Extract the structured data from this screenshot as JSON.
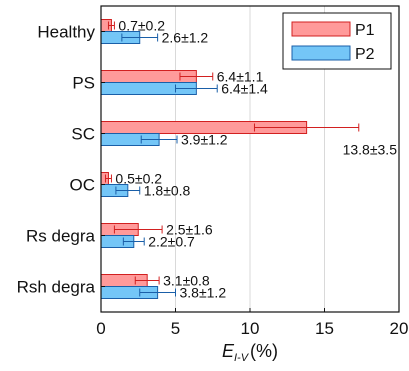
{
  "chart_data": {
    "type": "bar",
    "orientation": "horizontal",
    "categories": [
      "Healthy",
      "PS",
      "SC",
      "OC",
      "Rs degra",
      "Rsh degra"
    ],
    "series": [
      {
        "name": "P1",
        "color": "#ff9a9a",
        "values": [
          0.7,
          6.4,
          13.8,
          0.5,
          2.5,
          3.1
        ],
        "errors": [
          0.2,
          1.1,
          3.5,
          0.2,
          1.6,
          0.8
        ],
        "labels": [
          "0.7±0.2",
          "6.4±1.1",
          "13.8±3.5",
          "0.5±0.2",
          "2.5±1.6",
          "3.1±0.8"
        ]
      },
      {
        "name": "P2",
        "color": "#74c6f7",
        "values": [
          2.6,
          6.4,
          3.9,
          1.8,
          2.2,
          3.8
        ],
        "errors": [
          1.2,
          1.4,
          1.2,
          0.8,
          0.7,
          1.2
        ],
        "labels": [
          "2.6±1.2",
          "6.4±1.4",
          "3.9±1.2",
          "1.8±0.8",
          "2.2±0.7",
          "3.8±1.2"
        ]
      }
    ],
    "x_ticks": [
      "0",
      "5",
      "10",
      "15",
      "20"
    ],
    "xlim": [
      0,
      20
    ],
    "xlabel_main": "E",
    "xlabel_sub": "I-V",
    "xlabel_unit": "(%)",
    "grid": true,
    "legend_position": "top-right",
    "edge_colors": {
      "P1": "#d22020",
      "P2": "#1a5fa8"
    }
  }
}
